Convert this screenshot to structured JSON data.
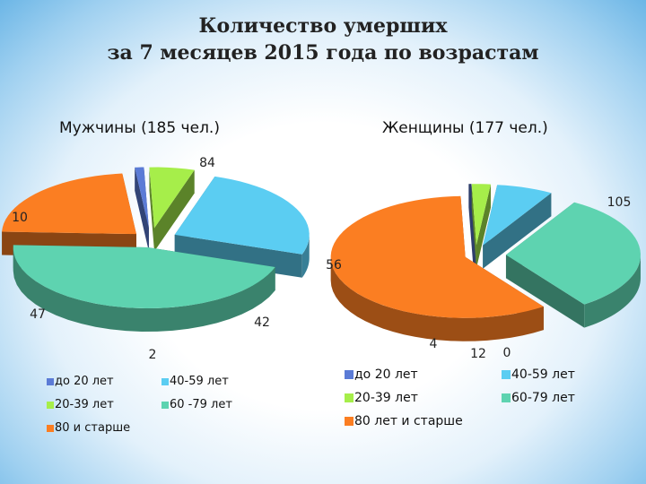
{
  "title_line1": "Количество умерших",
  "title_line2": "за 7 месяцев 2015 года по возрастам",
  "chart_data": [
    {
      "type": "pie",
      "title": "Мужчины (185 чел.)",
      "categories": [
        "до 20 лет",
        "20-39 лет",
        "40-59 лет",
        "60 -79 лет",
        "80 и старше"
      ],
      "values": [
        2,
        10,
        47,
        84,
        42
      ],
      "colors": [
        "#5b7bd6",
        "#a6ee4a",
        "#5bcdf2",
        "#5ed3b0",
        "#fb7e22"
      ]
    },
    {
      "type": "pie",
      "title": "Женщины (177 чел.)",
      "categories": [
        "до 20 лет",
        "20-39 лет",
        "40-59 лет",
        "60-79 лет",
        "80 лет и старше"
      ],
      "values": [
        0,
        4,
        12,
        56,
        105
      ],
      "colors": [
        "#5b7bd6",
        "#a6ee4a",
        "#5bcdf2",
        "#5ed3b0",
        "#fb7e22"
      ]
    }
  ]
}
